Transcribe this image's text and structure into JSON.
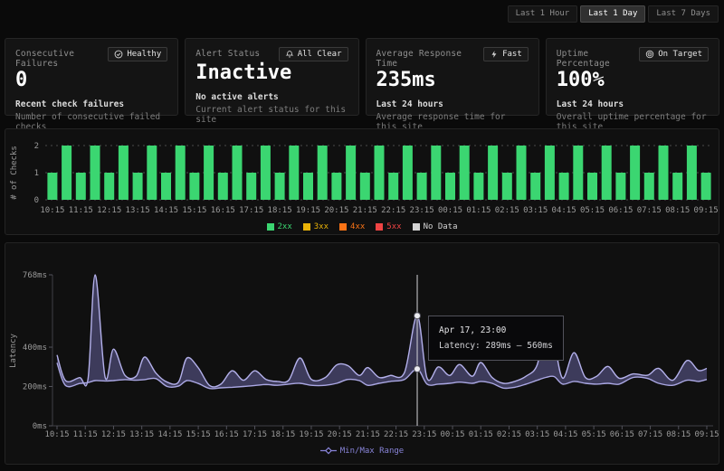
{
  "time_range": {
    "options": [
      {
        "label": "Last 1 Hour",
        "active": false
      },
      {
        "label": "Last 1 Day",
        "active": true
      },
      {
        "label": "Last 7 Days",
        "active": false
      }
    ]
  },
  "stats": [
    {
      "title": "Consecutive Failures",
      "badge": {
        "icon": "check-circle",
        "label": "Healthy"
      },
      "value": "0",
      "subtitle": "Recent check failures",
      "description": "Number of consecutive failed checks"
    },
    {
      "title": "Alert Status",
      "badge": {
        "icon": "bell",
        "label": "All Clear"
      },
      "value": "Inactive",
      "subtitle": "No active alerts",
      "description": "Current alert status for this site"
    },
    {
      "title": "Average Response Time",
      "badge": {
        "icon": "zap",
        "label": "Fast"
      },
      "value": "235ms",
      "subtitle": "Last 24 hours",
      "description": "Average response time for this site"
    },
    {
      "title": "Uptime Percentage",
      "badge": {
        "icon": "target",
        "label": "On Target"
      },
      "value": "100%",
      "subtitle": "Last 24 hours",
      "description": "Overall uptime percentage for this site"
    }
  ],
  "chart_data": [
    {
      "type": "bar",
      "name": "checks-per-interval",
      "ylabel": "# of Checks",
      "ylim": [
        0,
        2
      ],
      "yticks": [
        0,
        1,
        2
      ],
      "bar_color": "#3bd671",
      "categories": [
        "10:15",
        "11:15",
        "12:15",
        "13:15",
        "14:15",
        "15:15",
        "16:15",
        "17:15",
        "18:15",
        "19:15",
        "20:15",
        "21:15",
        "22:15",
        "23:15",
        "00:15",
        "01:15",
        "02:15",
        "03:15",
        "04:15",
        "05:15",
        "06:15",
        "07:15",
        "08:15",
        "09:15"
      ],
      "values": [
        1,
        2,
        1,
        2,
        1,
        2,
        1,
        2,
        1,
        2,
        1,
        2,
        1,
        2,
        1,
        2,
        1,
        2,
        1,
        2,
        1,
        2,
        1,
        2,
        1,
        2,
        1,
        2,
        1,
        2,
        1,
        2,
        1,
        2,
        1,
        2,
        1,
        2,
        1,
        2,
        1,
        2,
        1,
        2,
        1,
        2,
        1
      ],
      "legend": [
        {
          "label": "2xx",
          "color": "#3bd671"
        },
        {
          "label": "3xx",
          "color": "#eab308"
        },
        {
          "label": "4xx",
          "color": "#f97316"
        },
        {
          "label": "5xx",
          "color": "#ef4444"
        },
        {
          "label": "No Data",
          "color": "#d4d4d4"
        }
      ]
    },
    {
      "type": "area",
      "name": "latency-min-max",
      "ylabel": "Latency",
      "ylim": [
        0,
        768
      ],
      "yticks": [
        {
          "label": "0ms",
          "value": 0
        },
        {
          "label": "200ms",
          "value": 200
        },
        {
          "label": "400ms",
          "value": 400
        },
        {
          "label": "768ms",
          "value": 768
        }
      ],
      "x_labels": [
        "10:15",
        "11:15",
        "12:15",
        "13:15",
        "14:15",
        "15:15",
        "16:15",
        "17:15",
        "18:15",
        "19:15",
        "20:15",
        "21:15",
        "22:15",
        "23:15",
        "00:15",
        "01:15",
        "02:15",
        "03:15",
        "04:15",
        "05:15",
        "06:15",
        "07:15",
        "08:15",
        "09:15"
      ],
      "x_span_hours": 23,
      "color": "#8884d8",
      "legend": "Min/Max Range",
      "points": [
        [
          0,
          320,
          360
        ],
        [
          0.3,
          205,
          230
        ],
        [
          0.8,
          215,
          245
        ],
        [
          1.1,
          220,
          240
        ],
        [
          1.35,
          230,
          768
        ],
        [
          1.7,
          228,
          248
        ],
        [
          2,
          230,
          390
        ],
        [
          2.4,
          235,
          258
        ],
        [
          2.8,
          232,
          252
        ],
        [
          3.1,
          235,
          350
        ],
        [
          3.5,
          240,
          268
        ],
        [
          3.9,
          200,
          222
        ],
        [
          4.3,
          202,
          222
        ],
        [
          4.6,
          230,
          345
        ],
        [
          5,
          215,
          295
        ],
        [
          5.4,
          190,
          205
        ],
        [
          5.8,
          193,
          212
        ],
        [
          6.2,
          196,
          280
        ],
        [
          6.6,
          200,
          232
        ],
        [
          7,
          205,
          280
        ],
        [
          7.4,
          210,
          236
        ],
        [
          7.8,
          206,
          226
        ],
        [
          8.2,
          212,
          232
        ],
        [
          8.6,
          216,
          345
        ],
        [
          9,
          206,
          236
        ],
        [
          9.5,
          206,
          246
        ],
        [
          9.9,
          216,
          310
        ],
        [
          10.3,
          236,
          306
        ],
        [
          10.7,
          230,
          256
        ],
        [
          11,
          206,
          296
        ],
        [
          11.4,
          216,
          246
        ],
        [
          11.8,
          226,
          256
        ],
        [
          12.3,
          236,
          272
        ],
        [
          12.75,
          289,
          560
        ],
        [
          13.1,
          212,
          242
        ],
        [
          13.5,
          212,
          300
        ],
        [
          13.9,
          216,
          256
        ],
        [
          14.25,
          222,
          312
        ],
        [
          14.7,
          216,
          252
        ],
        [
          15,
          226,
          322
        ],
        [
          15.4,
          216,
          246
        ],
        [
          15.8,
          192,
          216
        ],
        [
          16.2,
          196,
          226
        ],
        [
          16.6,
          212,
          252
        ],
        [
          17,
          232,
          312
        ],
        [
          17.3,
          246,
          522
        ],
        [
          17.6,
          250,
          422
        ],
        [
          17.9,
          212,
          242
        ],
        [
          18.3,
          226,
          372
        ],
        [
          18.7,
          216,
          246
        ],
        [
          19.1,
          212,
          252
        ],
        [
          19.5,
          216,
          302
        ],
        [
          19.9,
          212,
          242
        ],
        [
          20.4,
          246,
          264
        ],
        [
          20.9,
          241,
          257
        ],
        [
          21.3,
          216,
          292
        ],
        [
          21.8,
          206,
          232
        ],
        [
          22.3,
          232,
          332
        ],
        [
          22.7,
          226,
          282
        ],
        [
          23,
          236,
          292
        ]
      ],
      "cursor": {
        "t": 12.75,
        "min": 289,
        "max": 560,
        "tooltip_title": "Apr 17, 23:00",
        "tooltip_text": "Latency: 289ms – 560ms"
      }
    }
  ]
}
